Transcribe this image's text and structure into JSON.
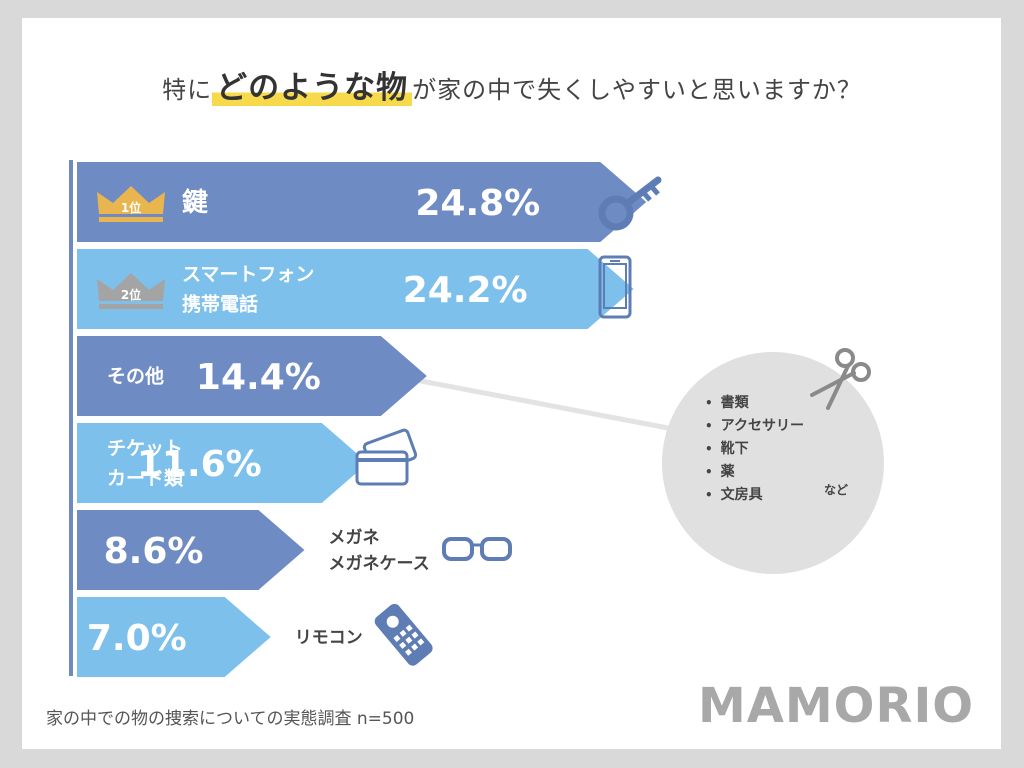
{
  "title": {
    "prefix": "特に",
    "highlight": "どのような物",
    "suffix": "が家の中で失くしやすいと思いますか？"
  },
  "chart_data": {
    "type": "bar",
    "categories": [
      "鍵",
      "スマートフォン携帯電話",
      "その他",
      "チケットカード類",
      "メガネメガネケース",
      "リモコン"
    ],
    "category_lines": [
      [
        "鍵"
      ],
      [
        "スマートフォン",
        "携帯電話"
      ],
      [
        "その他"
      ],
      [
        "チケット",
        "カード類"
      ],
      [
        "メガネ",
        "メガネケース"
      ],
      [
        "リモコン"
      ]
    ],
    "values": [
      24.8,
      24.2,
      14.4,
      11.6,
      8.6,
      7.0
    ],
    "value_labels": [
      "24.8%",
      "24.2%",
      "14.4%",
      "11.6%",
      "8.6%",
      "7.0%"
    ],
    "ranks": [
      "1位",
      "2位"
    ],
    "colors": [
      "#6f8bc4",
      "#7dc0ec",
      "#6f8bc4",
      "#7dc0ec",
      "#6f8bc4",
      "#7dc0ec"
    ],
    "icons": [
      "key-icon",
      "smartphone-icon",
      "",
      "cards-icon",
      "glasses-icon",
      "remote-icon"
    ]
  },
  "other_details": {
    "items": [
      "書類",
      "アクセサリー",
      "靴下",
      "薬",
      "文房具"
    ],
    "etc": "など"
  },
  "footer": "家の中での物の捜索についての実態調査 n=500",
  "logo": "MAMORIO",
  "colors": {
    "dark_bar": "#6f8bc4",
    "light_bar": "#7dc0ec",
    "gold": "#e9b54f",
    "silver": "#a4a4a4",
    "highlight": "#f7d94c"
  }
}
